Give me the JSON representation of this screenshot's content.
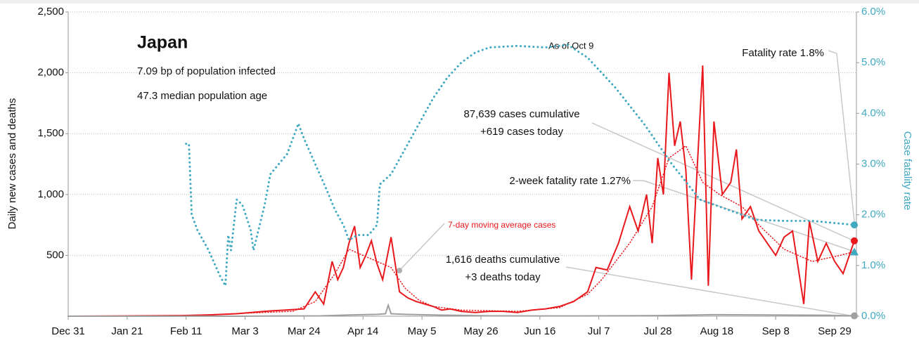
{
  "chart_data": {
    "type": "line",
    "title": "Japan",
    "subtitle_lines": [
      "7.09 bp of population infected",
      "47.3 median population age"
    ],
    "ylabel": "Daily new cases and deaths",
    "y2label": "Case fatality rate",
    "annotations": [
      "As of Oct 9",
      "Fatality rate 1.8%",
      "87,639 cases cumulative",
      "+619 cases today",
      "2-week fatality rate 1.27%",
      "7-day moving average cases",
      "1,616 deaths cumulative",
      "+3 deaths today"
    ],
    "xlim": [
      0,
      280
    ],
    "xticks": [
      {
        "value": 0,
        "label": "Dec 31"
      },
      {
        "value": 21,
        "label": "Jan 21"
      },
      {
        "value": 42,
        "label": "Feb 11"
      },
      {
        "value": 63,
        "label": "Mar 3"
      },
      {
        "value": 84,
        "label": "Mar 24"
      },
      {
        "value": 105,
        "label": "Apr 14"
      },
      {
        "value": 126,
        "label": "May 5"
      },
      {
        "value": 147,
        "label": "May 26"
      },
      {
        "value": 168,
        "label": "Jun 16"
      },
      {
        "value": 189,
        "label": "Jul 7"
      },
      {
        "value": 210,
        "label": "Jul 28"
      },
      {
        "value": 231,
        "label": "Aug 18"
      },
      {
        "value": 252,
        "label": "Sep 8"
      },
      {
        "value": 273,
        "label": "Sep 29"
      }
    ],
    "ylim": [
      0,
      2500
    ],
    "yticks": [
      500,
      {
        "value": 1000,
        "label": "1,000"
      },
      {
        "value": 1500,
        "label": "1,500"
      },
      {
        "value": 2000,
        "label": "2,000"
      },
      {
        "value": 2500,
        "label": "2,500"
      }
    ],
    "y2lim": [
      0,
      6
    ],
    "y2ticks": [
      {
        "value": 0,
        "label": "0.0%"
      },
      {
        "value": 1,
        "label": "1.0%"
      },
      {
        "value": 2,
        "label": "2.0%"
      },
      {
        "value": 3,
        "label": "3.0%"
      },
      {
        "value": 4,
        "label": "4.0%"
      },
      {
        "value": 5,
        "label": "5.0%"
      },
      {
        "value": 6,
        "label": "6.0%"
      }
    ],
    "grid": true,
    "series": [
      {
        "color": "#e8181c",
        "style": "solid",
        "x": [
          0,
          20,
          40,
          50,
          60,
          70,
          77,
          84,
          88,
          91,
          94,
          96,
          98,
          100,
          102,
          104,
          106,
          108,
          110,
          112,
          115,
          118,
          121,
          124,
          127,
          130,
          133,
          136,
          140,
          145,
          150,
          155,
          160,
          165,
          170,
          175,
          180,
          185,
          188,
          192,
          196,
          200,
          203,
          206,
          208,
          210,
          212,
          214,
          216,
          218,
          220,
          222,
          224,
          226,
          228,
          230,
          233,
          236,
          238,
          240,
          243,
          246,
          249,
          252,
          255,
          258,
          260,
          262,
          264,
          267,
          270,
          273,
          276,
          280
        ],
        "values": [
          0,
          2,
          5,
          10,
          20,
          40,
          50,
          60,
          200,
          100,
          450,
          300,
          400,
          600,
          740,
          400,
          500,
          620,
          430,
          300,
          650,
          200,
          150,
          120,
          100,
          80,
          50,
          60,
          40,
          30,
          40,
          40,
          30,
          50,
          60,
          80,
          120,
          200,
          400,
          380,
          600,
          900,
          700,
          1000,
          600,
          1300,
          1000,
          2000,
          1400,
          1600,
          1200,
          300,
          1200,
          2060,
          250,
          1600,
          1000,
          1100,
          1370,
          800,
          900,
          700,
          600,
          500,
          650,
          700,
          400,
          100,
          780,
          450,
          600,
          450,
          350,
          619
        ]
      },
      {
        "name": "7-day moving average cases",
        "color": "#e8181c",
        "style": "dotted",
        "x": [
          0,
          40,
          80,
          88,
          95,
          100,
          105,
          110,
          115,
          120,
          125,
          130,
          140,
          160,
          175,
          185,
          190,
          200,
          208,
          214,
          220,
          226,
          232,
          240,
          246,
          255,
          265,
          275,
          280
        ],
        "values": [
          0,
          3,
          40,
          120,
          350,
          550,
          500,
          450,
          400,
          230,
          130,
          80,
          50,
          40,
          70,
          180,
          300,
          600,
          900,
          1300,
          1400,
          1100,
          1000,
          900,
          750,
          550,
          450,
          500,
          530
        ]
      },
      {
        "color": "#a0a0a0",
        "style": "solid",
        "x": [
          0,
          60,
          90,
          100,
          110,
          113,
          114,
          115,
          120,
          130,
          150,
          180,
          210,
          230,
          250,
          270,
          280
        ],
        "values": [
          0,
          0,
          3,
          10,
          15,
          20,
          90,
          20,
          15,
          10,
          3,
          2,
          5,
          12,
          10,
          8,
          3
        ]
      },
      {
        "color": "#40a9c0",
        "style": "dotted",
        "axis": "y2",
        "x": [
          42,
          43,
          44,
          46,
          50,
          54,
          56,
          57,
          58,
          60,
          62,
          65,
          66,
          70,
          72,
          75,
          78,
          80,
          82,
          84,
          88,
          92,
          95,
          98,
          100,
          103,
          107,
          110,
          111,
          115,
          120,
          125,
          130,
          135,
          140,
          145,
          150,
          160,
          170,
          178,
          185,
          195,
          205,
          215,
          225,
          235,
          245,
          255,
          265,
          280
        ],
        "values": [
          3.4,
          3.4,
          2.0,
          1.7,
          1.3,
          0.8,
          0.6,
          1.6,
          1.3,
          2.3,
          2.2,
          1.7,
          1.3,
          2.2,
          2.8,
          3.0,
          3.2,
          3.5,
          3.8,
          3.5,
          3.0,
          2.5,
          2.1,
          1.8,
          1.5,
          1.6,
          1.6,
          1.8,
          2.6,
          2.8,
          3.3,
          3.8,
          4.3,
          4.7,
          5.0,
          5.2,
          5.3,
          5.33,
          5.3,
          5.35,
          5.1,
          4.5,
          3.8,
          3.0,
          2.3,
          2.1,
          1.9,
          1.88,
          1.88,
          1.8
        ]
      }
    ],
    "end_markers": [
      {
        "shape": "circle",
        "color": "#40a9c0",
        "axis": "y2",
        "value": 1.8
      },
      {
        "shape": "circle",
        "color": "#e8181c",
        "value": 619
      },
      {
        "shape": "triangle",
        "color": "#40a9c0",
        "axis": "y2",
        "value": 1.27
      },
      {
        "shape": "circle",
        "color": "#a0a0a0",
        "value": 3
      }
    ]
  }
}
